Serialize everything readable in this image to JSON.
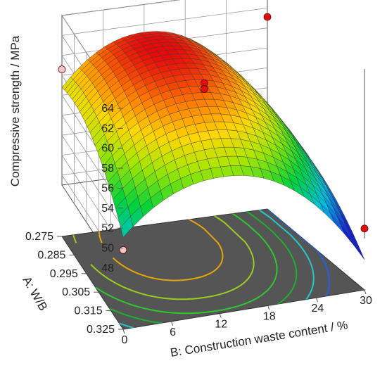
{
  "chart_data": {
    "type": "surface3d",
    "title": "",
    "zlabel": "Compressive strength / MPa",
    "xlabel": "B: Construction waste content / %",
    "ylabel": "A: W/B",
    "x_ticks": [
      "0",
      "6",
      "12",
      "18",
      "24",
      "30"
    ],
    "y_ticks": [
      "0.275",
      "0.285",
      "0.295",
      "0.305",
      "0.315",
      "0.325"
    ],
    "z_ticks": [
      "48",
      "50",
      "52",
      "54",
      "56",
      "58",
      "60",
      "62",
      "64"
    ],
    "xlim": [
      0,
      30
    ],
    "ylim": [
      0.275,
      0.325
    ],
    "zlim": [
      47,
      64
    ],
    "model": {
      "intercept": 61.6,
      "b_center": 12,
      "b_scale": 0.0213,
      "b_shape": 2.15,
      "a_center": 0.285,
      "a_scale": 3800
    },
    "colormap": "blue-cyan-green-yellow-red",
    "contour_levels": [
      60,
      58,
      56,
      54,
      52,
      50
    ],
    "contour_colors": [
      "#e6a60a",
      "#9acd20",
      "#2fc62f",
      "#1fae2f",
      "#22c8c8",
      "#2060e0"
    ],
    "floor_color": "#555555",
    "design_points": [
      {
        "B": 0,
        "A": 0.275,
        "strength": 58.6,
        "color": "#f8c8c8"
      },
      {
        "B": 0,
        "A": 0.325,
        "strength": 49.8,
        "color": "#f8c8c8"
      },
      {
        "B": 15,
        "A": 0.3,
        "strength": 60.2,
        "color": "#e01010"
      },
      {
        "B": 15,
        "A": 0.3,
        "strength": 59.6,
        "color": "#e01010"
      },
      {
        "B": 30,
        "A": 0.275,
        "strength": 61.1,
        "color": "#e01010"
      },
      {
        "B": 30,
        "A": 0.325,
        "strength": 48.0,
        "color": "#e01010"
      }
    ]
  }
}
